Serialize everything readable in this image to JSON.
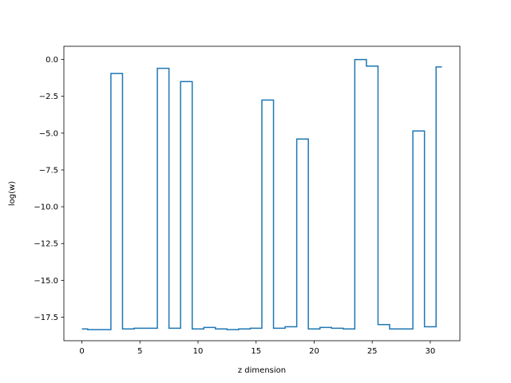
{
  "chart_data": {
    "type": "line",
    "drawstyle": "steps-mid",
    "title": "",
    "xlabel": "z dimension",
    "ylabel": "log(w)",
    "xlim": [
      -1.55,
      32.55
    ],
    "ylim": [
      -19.1,
      0.9
    ],
    "grid": false,
    "legend": "none",
    "series": [
      {
        "color": "#1f77b4",
        "x": [
          0,
          1,
          2,
          3,
          4,
          5,
          6,
          7,
          8,
          9,
          10,
          11,
          12,
          13,
          14,
          15,
          16,
          17,
          18,
          19,
          20,
          21,
          22,
          23,
          24,
          25,
          26,
          27,
          28,
          29,
          30,
          31
        ],
        "values": [
          -18.3,
          -18.35,
          -18.35,
          -0.95,
          -18.3,
          -18.25,
          -18.25,
          -0.6,
          -18.25,
          -1.5,
          -18.3,
          -18.2,
          -18.3,
          -18.35,
          -18.3,
          -18.25,
          -2.75,
          -18.25,
          -18.15,
          -5.4,
          -18.3,
          -18.2,
          -18.25,
          -18.3,
          0.0,
          -0.45,
          -18.0,
          -18.3,
          -18.3,
          -4.85,
          -18.15,
          -0.5
        ]
      }
    ],
    "xticks": [
      0,
      5,
      10,
      15,
      20,
      25,
      30
    ],
    "xtick_labels": [
      "0",
      "5",
      "10",
      "15",
      "20",
      "25",
      "30"
    ],
    "yticks": [
      0,
      -2.5,
      -5,
      -7.5,
      -10,
      -12.5,
      -15,
      -17.5
    ],
    "ytick_labels": [
      "0.0",
      "−2.5",
      "−5.0",
      "−7.5",
      "−10.0",
      "−12.5",
      "−15.0",
      "−17.5"
    ]
  }
}
